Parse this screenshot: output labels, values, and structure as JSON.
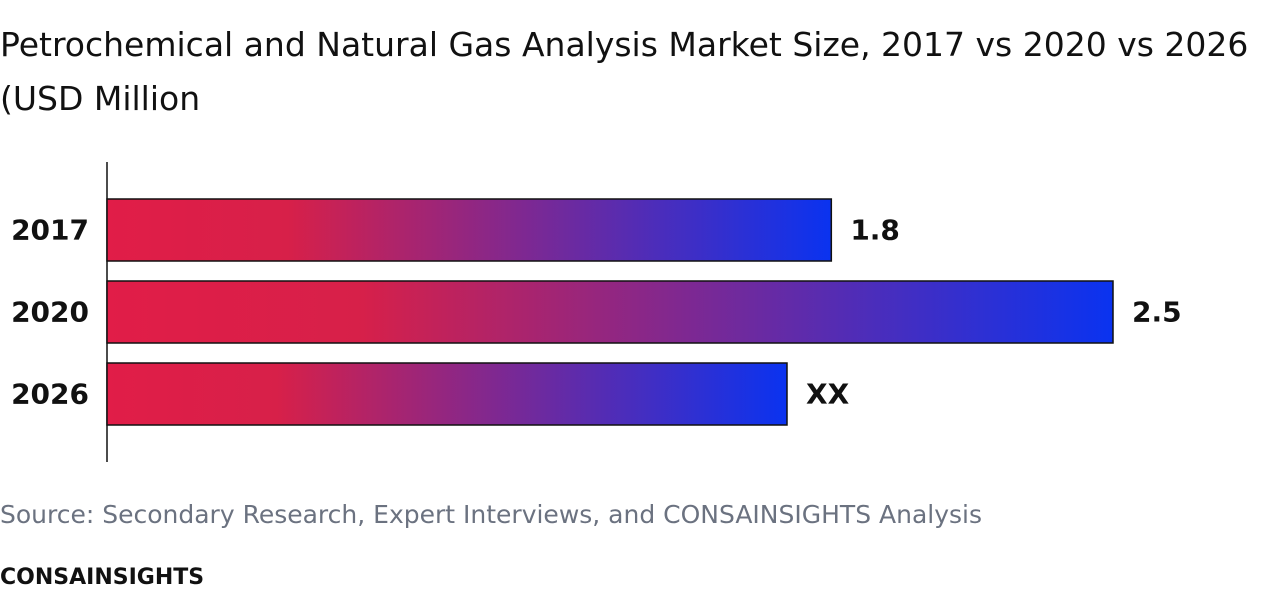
{
  "title": "Petrochemical and Natural Gas Analysis Market Size, 2017 vs 2020 vs 2026 (USD Million",
  "source": "Source: Secondary Research, Expert Interviews, and CONSAINSIGHTS Analysis",
  "brand": "CONSAINSIGHTS",
  "colors": {
    "gradient_start": "#e11d48",
    "gradient_mid": "#d72049",
    "gradient_end": "#0a33f0",
    "axis": "#111111",
    "bar_border": "#111111"
  },
  "chart_data": {
    "type": "bar",
    "orientation": "horizontal",
    "categories": [
      "2017",
      "2020",
      "2026"
    ],
    "values": [
      1.8,
      2.5,
      null
    ],
    "value_labels": [
      "1.8",
      "2.5",
      "XX"
    ],
    "xlim": [
      0,
      2.5
    ]
  }
}
